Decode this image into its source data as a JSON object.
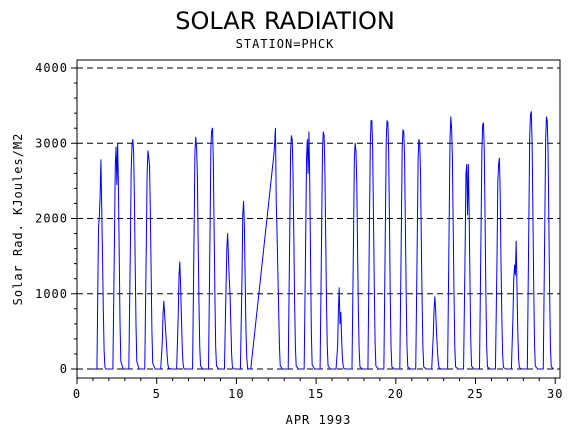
{
  "chart_data": {
    "type": "line",
    "title": "SOLAR RADIATION",
    "subtitle": "STATION=PHCK",
    "xlabel": "APR 1993",
    "ylabel": "Solar Rad. KJoules/M2",
    "xlim": [
      0,
      30.3
    ],
    "ylim": [
      0,
      4000
    ],
    "xticks": [
      0,
      5,
      10,
      15,
      20,
      25,
      30
    ],
    "yticks": [
      0,
      1000,
      2000,
      3000,
      4000
    ],
    "xtick_labels": [
      "0",
      "5",
      "10",
      "15",
      "20",
      "25",
      "30"
    ],
    "ytick_labels": [
      "0",
      "1000",
      "2000",
      "3000",
      "4000"
    ],
    "grid": "horizontal-dashed",
    "series_color": "#0000ff",
    "series": [
      {
        "x": [
          1.0,
          1.25,
          1.35,
          1.4,
          1.45,
          1.5,
          1.55,
          1.6,
          1.65,
          1.7,
          1.75,
          1.8,
          1.9,
          2.0,
          2.25,
          2.35,
          2.4,
          2.45,
          2.5,
          2.55,
          2.6,
          2.65,
          2.7,
          2.75,
          2.9,
          3.0,
          3.25,
          3.35,
          3.4,
          3.45,
          3.5,
          3.55,
          3.6,
          3.65,
          3.7,
          3.75,
          3.9,
          4.0,
          4.25,
          4.35,
          4.4,
          4.45,
          4.5,
          4.55,
          4.6,
          4.65,
          4.7,
          4.75,
          4.9,
          5.0,
          5.25,
          5.35,
          5.4,
          5.45,
          5.5,
          5.55,
          5.6,
          5.65,
          5.7,
          5.75,
          5.9,
          6.0,
          6.25,
          6.35,
          6.4,
          6.45,
          6.5,
          6.55,
          6.6,
          6.65,
          6.7,
          6.75,
          6.9,
          7.0,
          7.25,
          7.35,
          7.4,
          7.45,
          7.5,
          7.55,
          7.6,
          7.65,
          7.7,
          7.75,
          7.9,
          8.0,
          8.25,
          8.35,
          8.4,
          8.45,
          8.5,
          8.55,
          8.6,
          8.65,
          8.7,
          8.75,
          8.9,
          9.0,
          9.25,
          9.35,
          9.4,
          9.45,
          9.5,
          9.55,
          9.6,
          9.65,
          9.7,
          9.75,
          9.9,
          10.0,
          10.25,
          10.35,
          10.4,
          10.45,
          10.5,
          10.55,
          10.6,
          10.65,
          10.7,
          10.75,
          10.9,
          12.35,
          12.4,
          12.45,
          12.5,
          12.55,
          12.6,
          12.65,
          12.7,
          12.75,
          12.9,
          13.0,
          13.25,
          13.35,
          13.4,
          13.45,
          13.5,
          13.55,
          13.6,
          13.65,
          13.7,
          13.75,
          13.9,
          14.0,
          14.25,
          14.35,
          14.4,
          14.45,
          14.5,
          14.55,
          14.6,
          14.65,
          14.7,
          14.75,
          14.9,
          15.0,
          15.25,
          15.35,
          15.4,
          15.45,
          15.5,
          15.55,
          15.6,
          15.65,
          15.7,
          15.75,
          15.9,
          16.0,
          16.25,
          16.35,
          16.4,
          16.45,
          16.5,
          16.55,
          16.6,
          16.65,
          16.7,
          16.75,
          16.9,
          17.0,
          17.25,
          17.35,
          17.4,
          17.45,
          17.5,
          17.55,
          17.6,
          17.65,
          17.7,
          17.75,
          17.9,
          18.0,
          18.25,
          18.35,
          18.4,
          18.45,
          18.5,
          18.55,
          18.6,
          18.65,
          18.7,
          18.75,
          18.9,
          19.0,
          19.25,
          19.35,
          19.4,
          19.45,
          19.5,
          19.55,
          19.6,
          19.65,
          19.7,
          19.75,
          19.9,
          20.0,
          20.25,
          20.35,
          20.4,
          20.45,
          20.5,
          20.55,
          20.6,
          20.65,
          20.7,
          20.75,
          20.9,
          21.0,
          21.25,
          21.35,
          21.4,
          21.45,
          21.5,
          21.55,
          21.6,
          21.65,
          21.7,
          21.75,
          21.9,
          22.0,
          22.25,
          22.35,
          22.4,
          22.45,
          22.5,
          22.55,
          22.6,
          22.65,
          22.7,
          22.75,
          22.9,
          23.0,
          23.25,
          23.35,
          23.4,
          23.45,
          23.5,
          23.55,
          23.6,
          23.65,
          23.7,
          23.75,
          23.9,
          24.0,
          24.25,
          24.35,
          24.4,
          24.45,
          24.5,
          24.55,
          24.6,
          24.65,
          24.7,
          24.75,
          24.9,
          25.0,
          25.25,
          25.35,
          25.4,
          25.45,
          25.5,
          25.55,
          25.6,
          25.65,
          25.7,
          25.75,
          25.9,
          26.0,
          26.25,
          26.35,
          26.4,
          26.45,
          26.5,
          26.55,
          26.6,
          26.65,
          26.7,
          26.75,
          26.9,
          27.0,
          27.25,
          27.35,
          27.4,
          27.45,
          27.5,
          27.55,
          27.6,
          27.65,
          27.7,
          27.75,
          27.9,
          28.0,
          28.25,
          28.35,
          28.4,
          28.45,
          28.5,
          28.55,
          28.6,
          28.65,
          28.7,
          28.75,
          28.9,
          29.0,
          29.25,
          29.35,
          29.4,
          29.45,
          29.5,
          29.55,
          29.6,
          29.65,
          29.7,
          29.75,
          29.9
        ],
        "y": [
          0,
          0,
          1880,
          2020,
          2300,
          2780,
          2150,
          1500,
          800,
          250,
          30,
          0,
          0,
          0,
          0,
          1700,
          2700,
          2950,
          2450,
          3000,
          2400,
          1500,
          600,
          100,
          0,
          0,
          0,
          1650,
          2650,
          2980,
          3050,
          2900,
          2300,
          1400,
          600,
          100,
          0,
          0,
          0,
          1700,
          2600,
          2900,
          2820,
          2700,
          2100,
          1300,
          500,
          80,
          0,
          0,
          0,
          350,
          750,
          900,
          720,
          550,
          380,
          200,
          60,
          10,
          0,
          0,
          0,
          700,
          1250,
          1420,
          1100,
          700,
          300,
          80,
          10,
          0,
          0,
          0,
          0,
          1900,
          2900,
          3080,
          2950,
          2600,
          1700,
          900,
          300,
          40,
          0,
          0,
          0,
          1900,
          2950,
          3170,
          3200,
          2800,
          1900,
          1000,
          300,
          40,
          0,
          0,
          0,
          1100,
          1600,
          1800,
          1500,
          1200,
          1000,
          600,
          200,
          20,
          0,
          0,
          0,
          1200,
          2050,
          2230,
          1900,
          1200,
          500,
          150,
          20,
          0,
          0,
          2850,
          3000,
          3200,
          2200,
          1800,
          1300,
          800,
          300,
          40,
          0,
          0,
          0,
          1900,
          2900,
          3100,
          3050,
          2600,
          1800,
          900,
          300,
          40,
          0,
          0,
          0,
          1800,
          2800,
          3050,
          2600,
          3150,
          2500,
          1500,
          500,
          60,
          0,
          0,
          0,
          1900,
          2900,
          3150,
          3100,
          2650,
          1800,
          900,
          300,
          40,
          0,
          0,
          0,
          300,
          800,
          1080,
          600,
          750,
          400,
          150,
          40,
          5,
          0,
          0,
          0,
          1800,
          2800,
          3000,
          2900,
          2500,
          1600,
          800,
          250,
          30,
          0,
          0,
          0,
          2000,
          3000,
          3300,
          3300,
          2900,
          2000,
          1100,
          350,
          40,
          0,
          0,
          0,
          2000,
          3050,
          3300,
          3280,
          2900,
          2000,
          1000,
          300,
          30,
          0,
          0,
          0,
          1900,
          2950,
          3180,
          3150,
          2800,
          1900,
          1000,
          300,
          30,
          0,
          0,
          0,
          1800,
          2800,
          3050,
          3000,
          2600,
          1700,
          900,
          300,
          30,
          0,
          0,
          0,
          450,
          800,
          960,
          780,
          500,
          300,
          120,
          30,
          5,
          0,
          0,
          0,
          2000,
          3050,
          3350,
          3200,
          2800,
          1900,
          1000,
          300,
          30,
          0,
          0,
          0,
          1600,
          2600,
          2720,
          2050,
          2720,
          2100,
          1200,
          400,
          40,
          0,
          0,
          0,
          1900,
          2900,
          3250,
          3270,
          2900,
          2000,
          1000,
          300,
          30,
          0,
          0,
          0,
          1500,
          2500,
          2720,
          2800,
          2300,
          1400,
          700,
          200,
          20,
          0,
          0,
          0,
          700,
          1200,
          1380,
          1250,
          1700,
          1100,
          500,
          150,
          20,
          0,
          0,
          0,
          2050,
          3100,
          3380,
          3420,
          3000,
          2100,
          1100,
          350,
          40,
          0,
          0,
          0,
          2000,
          3050,
          3350,
          3300,
          2900,
          2000,
          1000,
          300,
          30,
          0
        ]
      }
    ]
  }
}
